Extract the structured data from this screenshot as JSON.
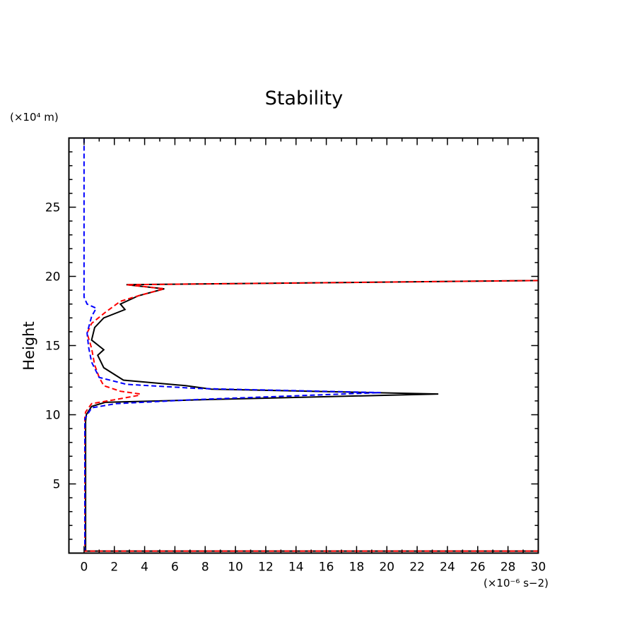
{
  "chart_data": {
    "type": "line",
    "title": "Stability",
    "xlabel": "",
    "ylabel": "Height",
    "x_units": "(×10⁻⁶ s−2)",
    "y_units": "(×10⁴ m)",
    "xlim": [
      -1,
      30
    ],
    "ylim": [
      0,
      30
    ],
    "x_ticks": [
      0,
      2,
      4,
      6,
      8,
      10,
      12,
      14,
      16,
      18,
      20,
      22,
      24,
      26,
      28,
      30
    ],
    "y_ticks": [
      5,
      10,
      15,
      20,
      25
    ],
    "grid": false,
    "series": [
      {
        "name": "black-solid",
        "color": "#000000",
        "dash": "solid",
        "points": [
          [
            30,
            0.15
          ],
          [
            0.1,
            0.15
          ],
          [
            0.1,
            9.5
          ],
          [
            0.15,
            10
          ],
          [
            0.5,
            10.6
          ],
          [
            1.4,
            10.9
          ],
          [
            8.4,
            11.1
          ],
          [
            23.4,
            11.5
          ],
          [
            8.4,
            11.85
          ],
          [
            6.7,
            12.1
          ],
          [
            2.6,
            12.5
          ],
          [
            1.3,
            13.4
          ],
          [
            0.9,
            14.3
          ],
          [
            1.3,
            14.7
          ],
          [
            0.5,
            15.4
          ],
          [
            0.7,
            16.3
          ],
          [
            1.3,
            17.0
          ],
          [
            2.7,
            17.6
          ],
          [
            2.4,
            18.0
          ],
          [
            3.6,
            18.6
          ],
          [
            5.3,
            19.1
          ],
          [
            2.8,
            19.4
          ],
          [
            30,
            19.7
          ]
        ]
      },
      {
        "name": "red-dashed",
        "color": "#ff0000",
        "dash": "dashed",
        "points": [
          [
            30,
            0.15
          ],
          [
            0.05,
            0.15
          ],
          [
            0.05,
            9.8
          ],
          [
            0.1,
            10.2
          ],
          [
            0.5,
            10.8
          ],
          [
            2.1,
            11.1
          ],
          [
            3.6,
            11.4
          ],
          [
            3.7,
            11.5
          ],
          [
            2.4,
            11.7
          ],
          [
            1.3,
            12.1
          ],
          [
            1.0,
            12.7
          ],
          [
            0.7,
            13.6
          ],
          [
            0.5,
            14.8
          ],
          [
            0.2,
            15.9
          ],
          [
            0.5,
            16.6
          ],
          [
            1.4,
            17.4
          ],
          [
            2.4,
            18.2
          ],
          [
            3.6,
            18.6
          ],
          [
            5.3,
            19.1
          ],
          [
            2.8,
            19.4
          ],
          [
            30,
            19.7
          ]
        ]
      },
      {
        "name": "blue-dashed",
        "color": "#0000ff",
        "dash": "dashed",
        "points": [
          [
            0,
            30
          ],
          [
            0,
            18.5
          ],
          [
            0.2,
            18.0
          ],
          [
            0.8,
            17.7
          ],
          [
            0.5,
            17.1
          ],
          [
            0.2,
            15.9
          ],
          [
            0.3,
            14.9
          ],
          [
            0.5,
            13.8
          ],
          [
            1.0,
            12.7
          ],
          [
            2.8,
            12.2
          ],
          [
            7.5,
            11.9
          ],
          [
            19.6,
            11.6
          ],
          [
            7.5,
            11.1
          ],
          [
            2.1,
            10.8
          ],
          [
            0.5,
            10.5
          ],
          [
            0.05,
            9.7
          ],
          [
            0.05,
            0.2
          ]
        ]
      }
    ]
  }
}
